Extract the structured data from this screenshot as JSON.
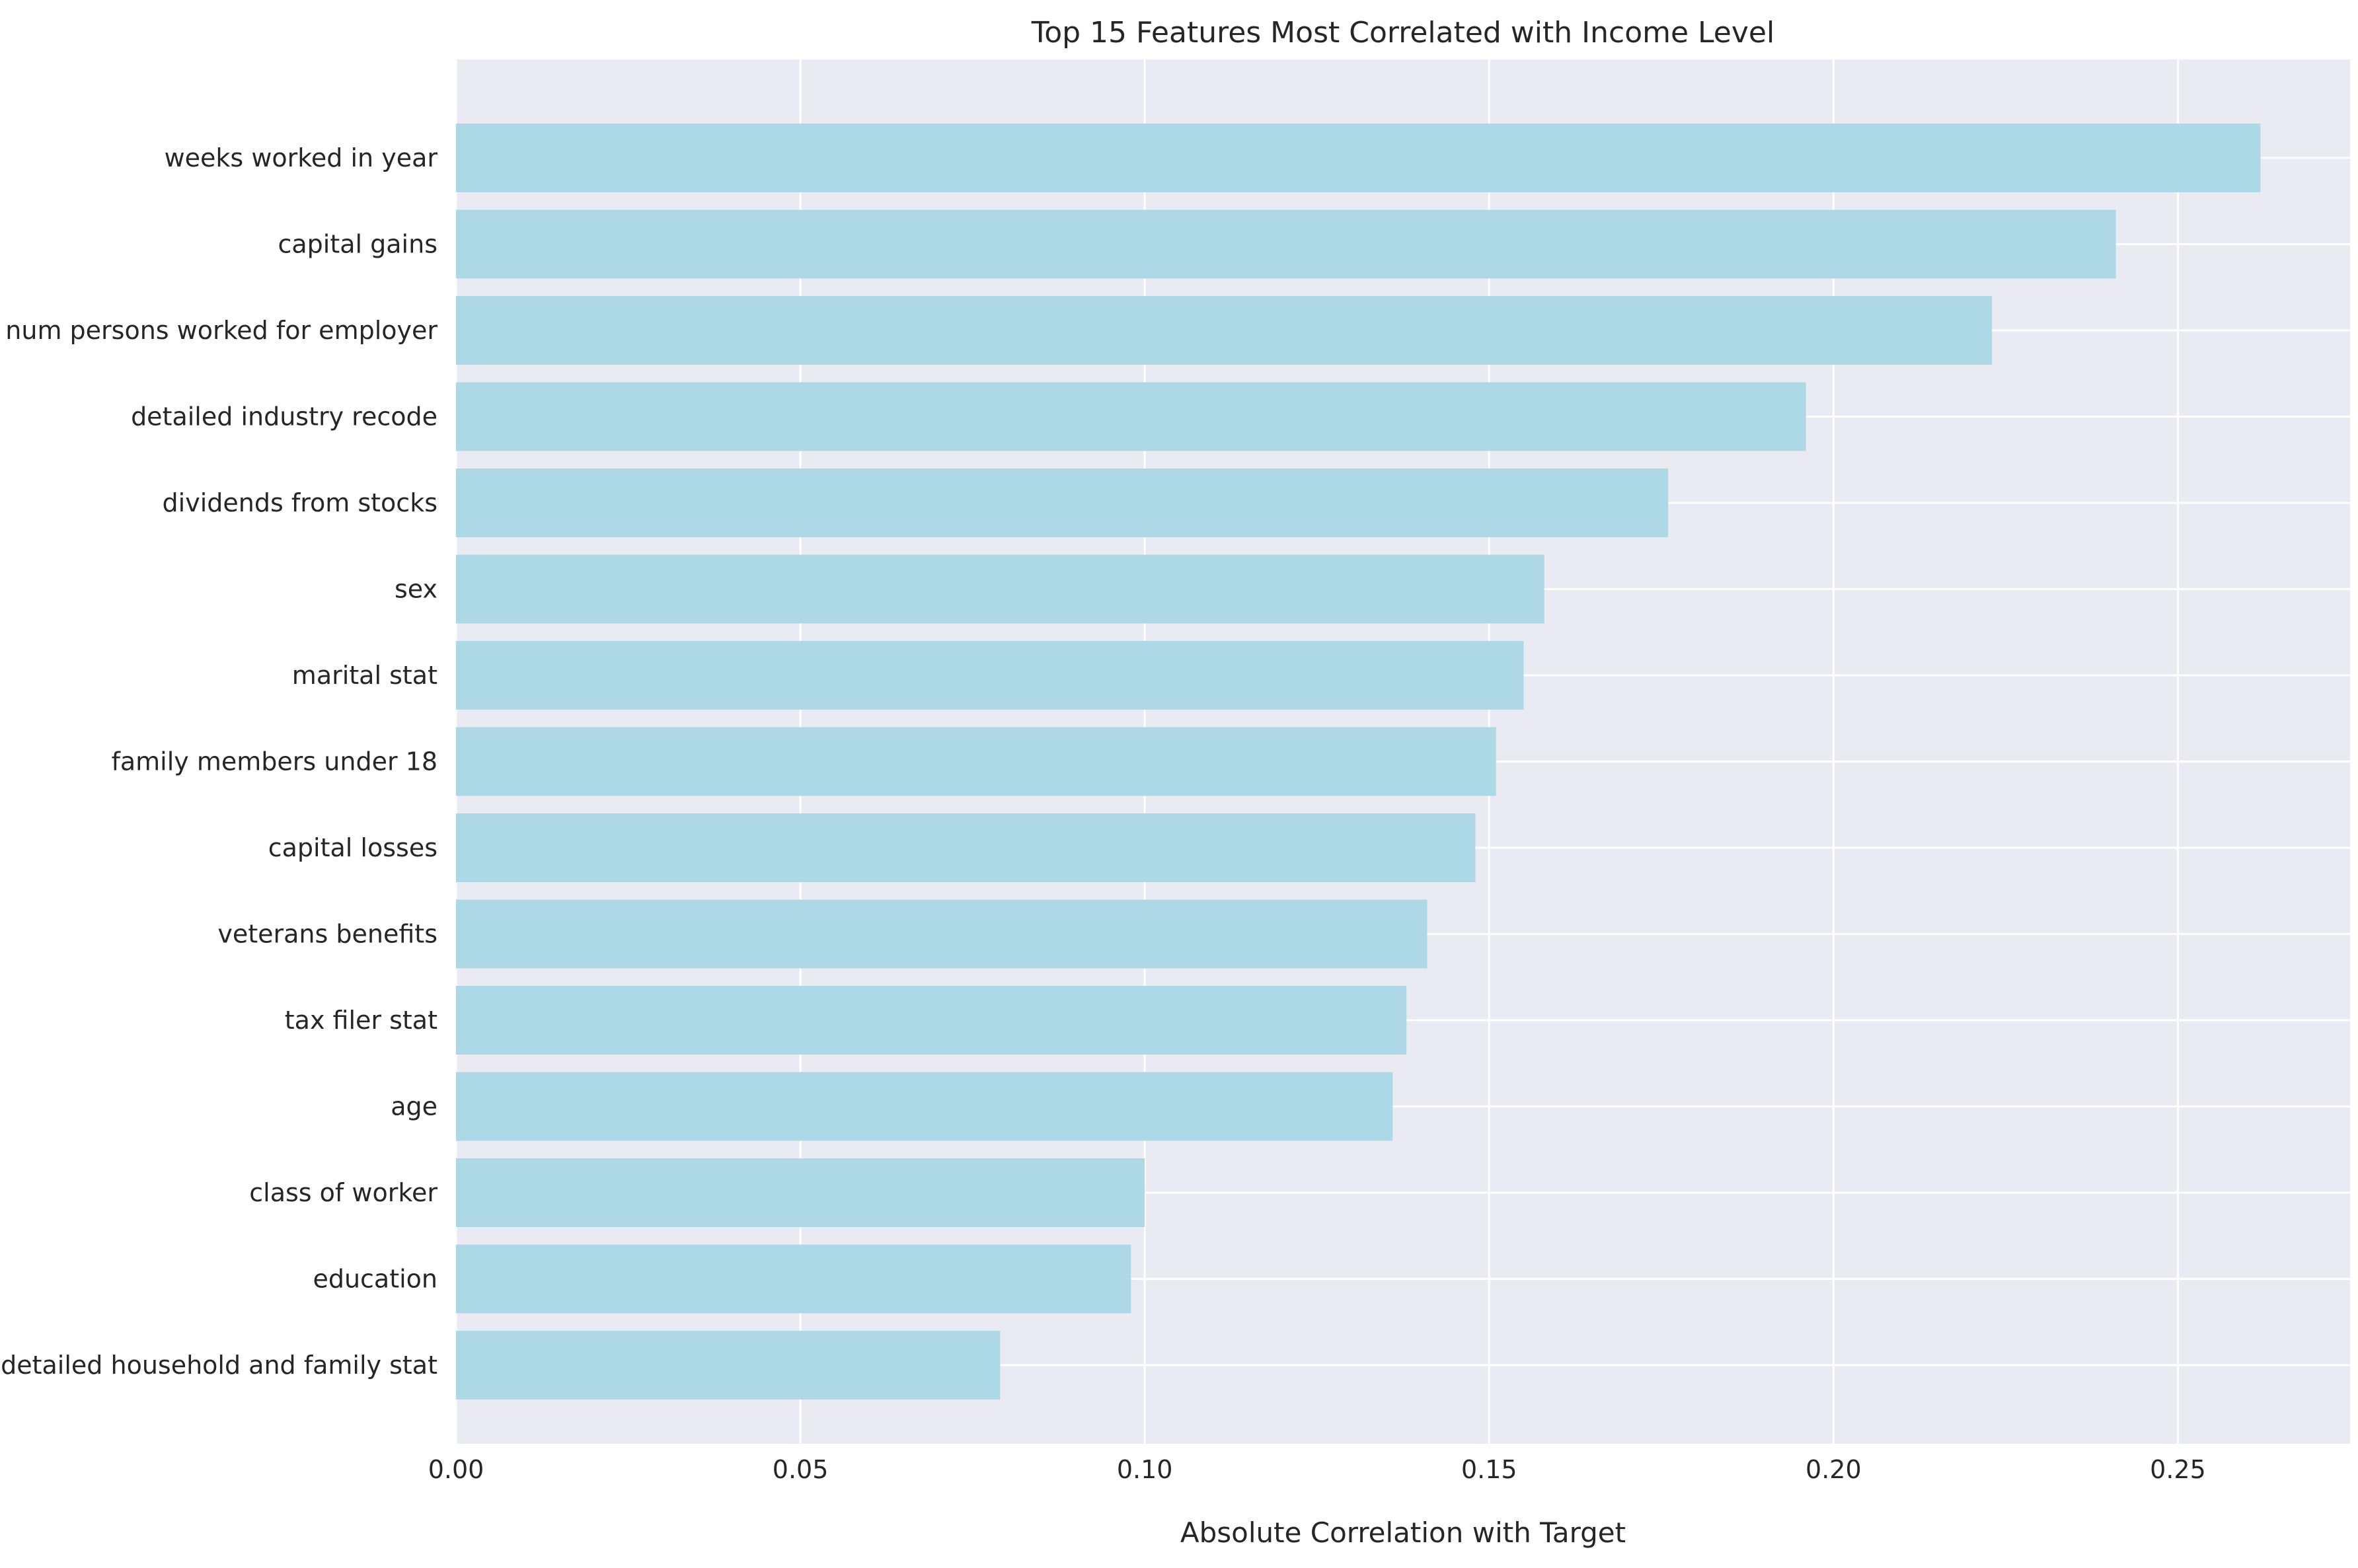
{
  "chart_data": {
    "type": "bar",
    "orientation": "horizontal",
    "title": "Top 15 Features Most Correlated with Income Level",
    "xlabel": "Absolute Correlation with Target",
    "ylabel": "",
    "xlim": [
      0,
      0.275
    ],
    "xticks": [
      0.0,
      0.05,
      0.1,
      0.15,
      0.2,
      0.25
    ],
    "xtick_labels": [
      "0.00",
      "0.05",
      "0.10",
      "0.15",
      "0.20",
      "0.25"
    ],
    "grid": true,
    "legend": "none",
    "colors": {
      "bar": "#add8e6",
      "plot_background": "#eaeaf2",
      "grid": "#ffffff"
    },
    "categories": [
      "weeks worked in year",
      "capital gains",
      "num persons worked for employer",
      "detailed industry recode",
      "dividends from stocks",
      "sex",
      "marital stat",
      "family members under 18",
      "capital losses",
      "veterans benefits",
      "tax filer stat",
      "age",
      "class of worker",
      "education",
      "detailed household and family stat"
    ],
    "values": [
      0.262,
      0.241,
      0.223,
      0.196,
      0.176,
      0.158,
      0.155,
      0.151,
      0.148,
      0.141,
      0.138,
      0.136,
      0.1,
      0.098,
      0.079
    ]
  }
}
